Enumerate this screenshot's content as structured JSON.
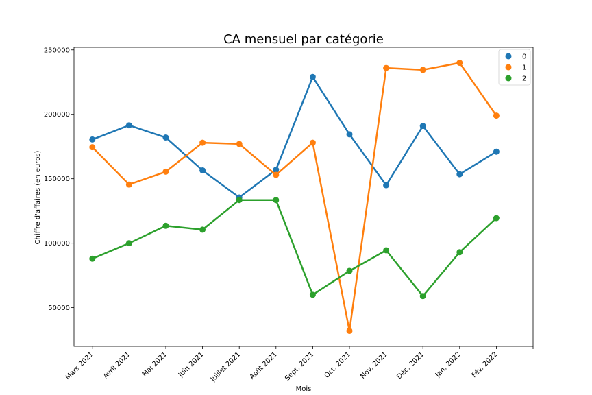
{
  "chart_data": {
    "type": "line",
    "title": "CA mensuel par catégorie",
    "xlabel": "Mois",
    "ylabel": "Chiffre d'affaires (en euros)",
    "categories": [
      "Mars 2021",
      "Avril 2021",
      "Mai 2021",
      "Juin 2021",
      "Juillet 2021",
      "Août 2021",
      "Sept. 2021",
      "Oct. 2021",
      "Nov. 2021",
      "Déc. 2021",
      "Jan. 2022",
      "Fév. 2022"
    ],
    "ylim": [
      20000,
      252000
    ],
    "yticks": [
      50000,
      100000,
      150000,
      200000,
      250000
    ],
    "grid": false,
    "legend_position": "top-right",
    "series": [
      {
        "name": "0",
        "color": "#1f77b4",
        "values": [
          180500,
          191500,
          182000,
          156500,
          135500,
          157000,
          229000,
          184500,
          145000,
          191000,
          153500,
          171000
        ]
      },
      {
        "name": "1",
        "color": "#ff7f0e",
        "values": [
          174500,
          145500,
          155500,
          178000,
          177000,
          153000,
          178000,
          32000,
          236000,
          234500,
          240000,
          199000
        ]
      },
      {
        "name": "2",
        "color": "#2ca02c",
        "values": [
          88000,
          100000,
          113500,
          110500,
          133500,
          133500,
          60000,
          78500,
          94500,
          59000,
          93000,
          119500
        ]
      }
    ]
  }
}
